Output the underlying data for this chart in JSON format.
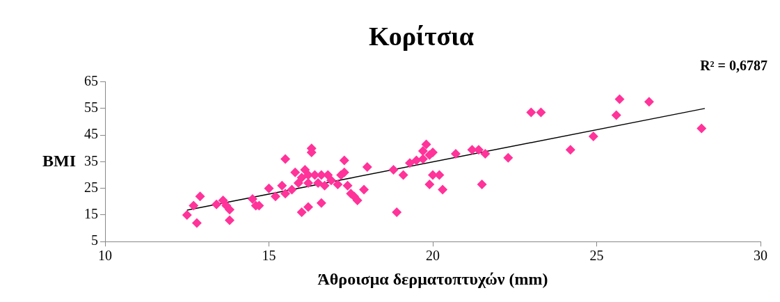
{
  "chart_data": {
    "type": "scatter",
    "title": "Κορίτσια",
    "xlabel": "Άθροισμα δερματοπτυχών (mm)",
    "ylabel": "BMI",
    "annotations": [
      "R² = 0,6787"
    ],
    "xlim": [
      10,
      30
    ],
    "xticks": [
      10,
      15,
      20,
      25,
      30
    ],
    "ylim": [
      5,
      65
    ],
    "yticks": [
      5,
      15,
      25,
      35,
      45,
      55,
      65
    ],
    "grid": false,
    "legend": false,
    "marker": "diamond",
    "series": [
      {
        "color": "#ff3399",
        "x": [
          12.5,
          12.7,
          12.9,
          12.8,
          13.4,
          13.6,
          13.7,
          13.8,
          13.8,
          14.5,
          14.6,
          14.7,
          15.0,
          15.2,
          15.4,
          15.5,
          15.7,
          15.5,
          15.8,
          15.9,
          16.0,
          16.0,
          16.1,
          16.2,
          16.2,
          16.2,
          16.3,
          16.3,
          16.4,
          16.5,
          16.6,
          16.6,
          16.7,
          16.8,
          16.9,
          17.1,
          17.2,
          17.3,
          17.3,
          17.4,
          17.5,
          17.6,
          17.7,
          17.9,
          18.0,
          18.8,
          18.9,
          19.1,
          19.3,
          19.5,
          19.7,
          19.7,
          19.8,
          19.9,
          19.9,
          20.0,
          20.0,
          20.2,
          20.3,
          20.7,
          21.2,
          21.4,
          21.5,
          21.6,
          22.3,
          23.0,
          23.3,
          24.2,
          24.9,
          25.6,
          25.7,
          26.6,
          28.2
        ],
        "values": [
          15,
          18.5,
          22,
          12,
          19,
          20.5,
          18.5,
          17,
          13,
          21,
          18.5,
          18.5,
          25,
          22,
          26,
          23,
          24.5,
          36,
          31,
          27,
          29,
          16,
          32,
          30,
          27,
          18,
          38.5,
          40,
          30,
          27,
          30,
          19.5,
          26,
          30,
          28,
          26.5,
          30,
          31,
          35.5,
          26,
          23,
          22,
          20.5,
          24.5,
          33,
          32,
          16,
          30,
          34.5,
          35.5,
          36,
          39,
          41.5,
          37.5,
          26.5,
          30,
          38.5,
          30,
          24.5,
          38,
          39.5,
          39.5,
          26.5,
          38,
          36.5,
          53.5,
          53.5,
          39.5,
          44.5,
          52.5,
          58.5,
          57.5,
          47.5
        ]
      },
      {
        "type": "line",
        "color": "#000000",
        "marker": "none",
        "x": [
          12.5,
          28.3
        ],
        "values": [
          16.8,
          55
        ]
      }
    ]
  }
}
